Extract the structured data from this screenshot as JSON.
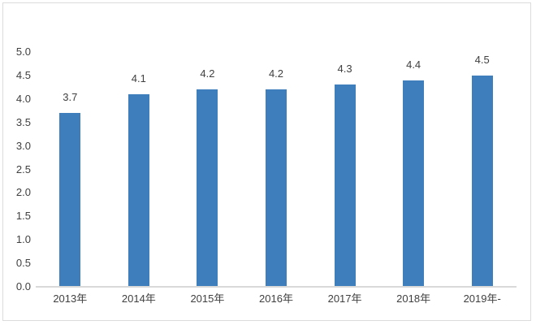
{
  "frame": {
    "border_color": "#dcdcdc",
    "background_color": "#ffffff"
  },
  "chart_data": {
    "type": "bar",
    "title": "",
    "xlabel": "",
    "ylabel": "",
    "categories": [
      "2013年",
      "2014年",
      "2015年",
      "2016年",
      "2017年",
      "2018年",
      "2019年-"
    ],
    "values": [
      3.7,
      4.1,
      4.2,
      4.2,
      4.3,
      4.4,
      4.5
    ],
    "data_labels": [
      "3.7",
      "4.1",
      "4.2",
      "4.2",
      "4.3",
      "4.4",
      "4.5"
    ],
    "ylim": [
      0.0,
      5.0
    ],
    "ytick_step": 0.5,
    "ytick_labels": [
      "0.0",
      "0.5",
      "1.0",
      "1.5",
      "2.0",
      "2.5",
      "3.0",
      "3.5",
      "4.0",
      "4.5",
      "5.0"
    ],
    "grid": false,
    "legend": false,
    "bar_color": "#3e7ebc",
    "axis_line_color": "#d9d9d9",
    "label_color": "#404040"
  }
}
